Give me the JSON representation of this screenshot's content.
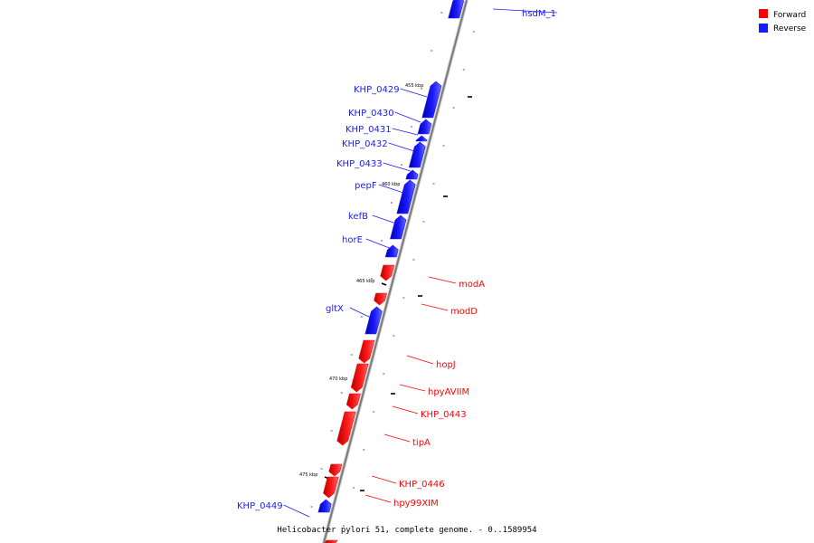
{
  "colors": {
    "forward": "#ff0000",
    "reverse": "#1a1aff",
    "backbone": "#8a8a8a"
  },
  "legend": [
    {
      "key": "forward",
      "label": "Forward"
    },
    {
      "key": "reverse",
      "label": "Reverse"
    }
  ],
  "caption": "Helicobacter pylori 51, complete genome. - 0..1589954",
  "ticks": [
    "455 kbp",
    "460 kbp",
    "465 kbp",
    "470 kbp",
    "475 kbp"
  ],
  "genes": [
    {
      "name": "hsdM_1",
      "strand": "reverse"
    },
    {
      "name": "KHP_0429",
      "strand": "reverse"
    },
    {
      "name": "KHP_0430",
      "strand": "reverse"
    },
    {
      "name": "KHP_0431",
      "strand": "reverse"
    },
    {
      "name": "KHP_0432",
      "strand": "reverse"
    },
    {
      "name": "KHP_0433",
      "strand": "reverse"
    },
    {
      "name": "pepF",
      "strand": "reverse"
    },
    {
      "name": "kefB",
      "strand": "reverse"
    },
    {
      "name": "horE",
      "strand": "reverse"
    },
    {
      "name": "modA",
      "strand": "forward"
    },
    {
      "name": "modD",
      "strand": "forward"
    },
    {
      "name": "gltX",
      "strand": "reverse"
    },
    {
      "name": "hopJ",
      "strand": "forward"
    },
    {
      "name": "hpyAVIIM",
      "strand": "forward"
    },
    {
      "name": "KHP_0443",
      "strand": "forward"
    },
    {
      "name": "tipA",
      "strand": "forward"
    },
    {
      "name": "KHP_0446",
      "strand": "forward"
    },
    {
      "name": "hpy99XIM",
      "strand": "forward"
    },
    {
      "name": "KHP_0449",
      "strand": "reverse"
    }
  ]
}
